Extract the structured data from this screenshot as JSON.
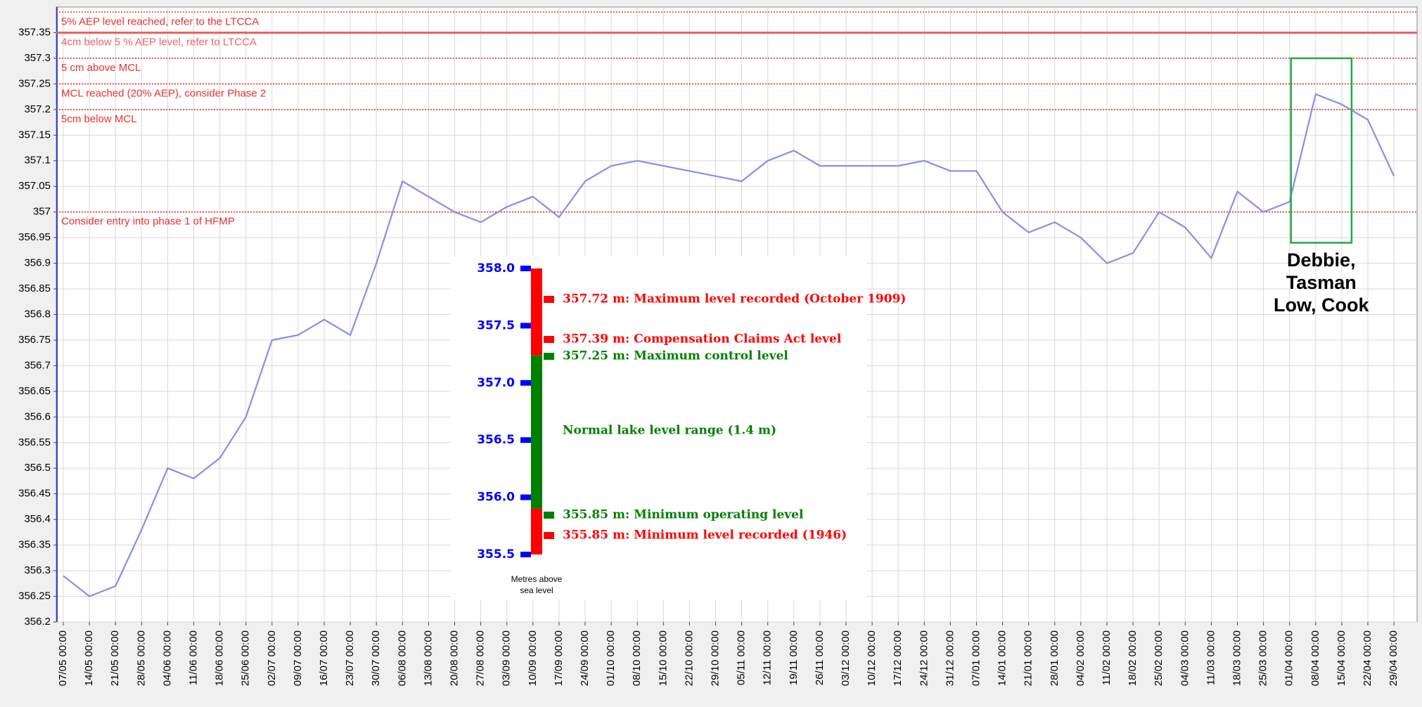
{
  "chart_data": {
    "type": "line",
    "categories": [
      "07/05 00:00",
      "14/05 00:00",
      "21/05 00:00",
      "28/05 00:00",
      "04/06 00:00",
      "11/06 00:00",
      "18/06 00:00",
      "25/06 00:00",
      "02/07 00:00",
      "09/07 00:00",
      "16/07 00:00",
      "23/07 00:00",
      "30/07 00:00",
      "06/08 00:00",
      "13/08 00:00",
      "20/08 00:00",
      "27/08 00:00",
      "03/09 00:00",
      "10/09 00:00",
      "17/09 00:00",
      "24/09 00:00",
      "01/10 00:00",
      "08/10 00:00",
      "15/10 00:00",
      "22/10 00:00",
      "29/10 00:00",
      "05/11 00:00",
      "12/11 00:00",
      "19/11 00:00",
      "26/11 00:00",
      "03/12 00:00",
      "10/12 00:00",
      "17/12 00:00",
      "24/12 00:00",
      "31/12 00:00",
      "07/01 00:00",
      "14/01 00:00",
      "21/01 00:00",
      "28/01 00:00",
      "04/02 00:00",
      "11/02 00:00",
      "18/02 00:00",
      "25/02 00:00",
      "04/03 00:00",
      "11/03 00:00",
      "18/03 00:00",
      "25/03 00:00",
      "01/04 00:00",
      "08/04 00:00",
      "15/04 00:00",
      "22/04 00:00",
      "29/04 00:00"
    ],
    "series": [
      {
        "color": "#8a8cee",
        "values": [
          356.29,
          356.25,
          356.27,
          356.38,
          356.5,
          356.48,
          356.52,
          356.6,
          356.75,
          356.76,
          356.79,
          356.76,
          356.9,
          357.06,
          357.03,
          357.0,
          356.98,
          357.01,
          357.03,
          356.99,
          357.06,
          357.09,
          357.1,
          357.09,
          357.08,
          357.07,
          357.06,
          357.1,
          357.12,
          357.09,
          357.09,
          357.09,
          357.09,
          357.1,
          357.08,
          357.08,
          357.0,
          356.96,
          356.98,
          356.95,
          356.9,
          356.92,
          357.0,
          356.97,
          356.91,
          357.04,
          357.0,
          357.02,
          357.23,
          357.21,
          357.18,
          357.07
        ]
      }
    ],
    "ylim": [
      356.2,
      357.4
    ],
    "yticks": [
      356.2,
      356.25,
      356.3,
      356.35,
      356.4,
      356.45,
      356.5,
      356.55,
      356.6,
      356.65,
      356.7,
      356.75,
      356.8,
      356.85,
      356.9,
      356.95,
      357,
      357.05,
      357.1,
      357.15,
      357.2,
      357.25,
      357.3,
      357.35
    ],
    "grid": true,
    "reference_lines": [
      {
        "value": 357.39,
        "label": "5% AEP level reached, refer to the LTCCA",
        "style": "dotted",
        "color": "#e83030"
      },
      {
        "value": 357.35,
        "label": "4cm below 5 % AEP level, refer to LTCCA",
        "style": "solid",
        "color": "#f06060"
      },
      {
        "value": 357.3,
        "label": "5 cm above  MCL",
        "style": "dotted",
        "color": "#e83030"
      },
      {
        "value": 357.25,
        "label": "MCL reached (20% AEP), consider Phase 2",
        "style": "dotted",
        "color": "#e83030"
      },
      {
        "value": 357.2,
        "label": "5cm below  MCL",
        "style": "dotted",
        "color": "#e83030"
      },
      {
        "value": 357,
        "label": "Consider entry into phase 1 of HFMP",
        "style": "dotted",
        "color": "#e83030"
      }
    ],
    "annotation": {
      "lines": [
        "Debbie,",
        "Tasman",
        "Low, Cook"
      ],
      "box_ylim": [
        356.94,
        357.3
      ],
      "color": "#22aa44"
    },
    "inset": {
      "ylim": [
        355.5,
        358
      ],
      "yticks": [
        {
          "value": 358,
          "label": "358.0"
        },
        {
          "value": 357.5,
          "label": "357.5"
        },
        {
          "value": 357,
          "label": "357.0"
        },
        {
          "value": 356.5,
          "label": "356.5"
        },
        {
          "value": 356,
          "label": "356.0"
        },
        {
          "value": 355.5,
          "label": "355.5"
        }
      ],
      "segments": [
        {
          "from": 357.24,
          "to": 358,
          "color": "#ff0000"
        },
        {
          "from": 355.9,
          "to": 357.24,
          "color": "#008000"
        },
        {
          "from": 355.5,
          "to": 355.9,
          "color": "#ff0000"
        }
      ],
      "labels": [
        {
          "text": "357.72 m: Maximum level recorded (October 1909)",
          "color": "#ff0000"
        },
        {
          "text": "357.39 m: Compensation Claims Act level",
          "color": "#ff0000"
        },
        {
          "text": "357.25 m: Maximum control level",
          "color": "#008000"
        },
        {
          "text": "Normal lake level range (1.4 m)",
          "color": "#008000"
        },
        {
          "text": "355.85 m: Minimum operating level",
          "color": "#008000"
        },
        {
          "text": "355.85 m: Minimum level recorded (1946)",
          "color": "#ff0000"
        }
      ],
      "axis_label": [
        "Metres above",
        "sea level"
      ]
    }
  }
}
